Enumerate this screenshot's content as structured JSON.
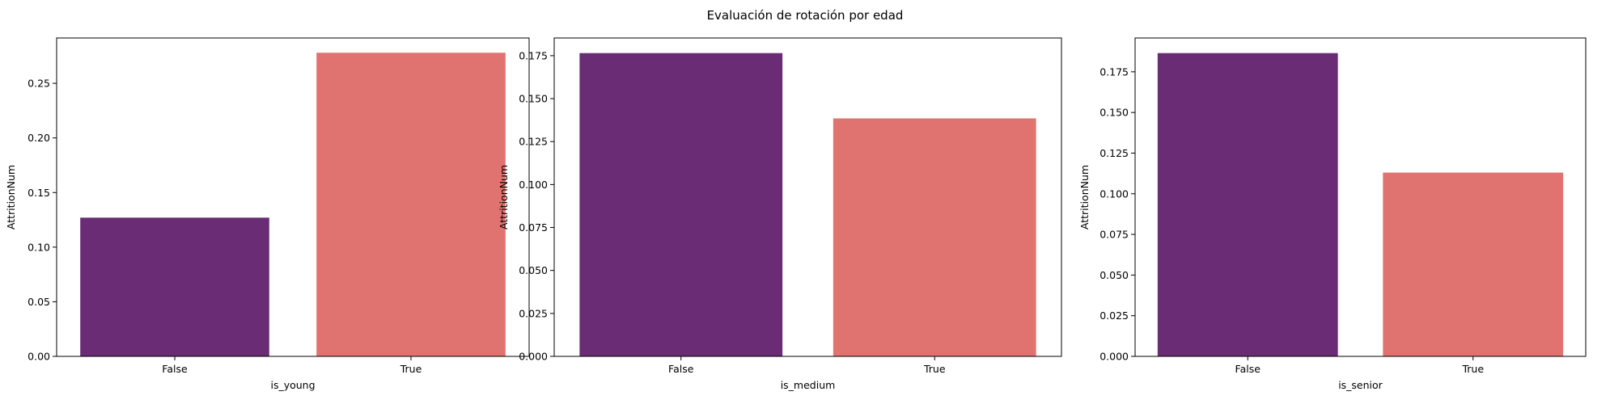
{
  "figure": {
    "suptitle": "Evaluación de rotación por edad"
  },
  "colors": {
    "bar_false": "#6a2c75",
    "bar_true": "#e07370"
  },
  "chart_data": [
    {
      "type": "bar",
      "categories": [
        "False",
        "True"
      ],
      "values": [
        0.127,
        0.278
      ],
      "xlabel": "is_young",
      "ylabel": "AttritionNum",
      "ylim": [
        0,
        0.2915
      ],
      "yticks": [
        0.0,
        0.05,
        0.1,
        0.15,
        0.2,
        0.25
      ],
      "ytick_labels": [
        "0.00",
        "0.05",
        "0.10",
        "0.15",
        "0.20",
        "0.25"
      ],
      "grid": false
    },
    {
      "type": "bar",
      "categories": [
        "False",
        "True"
      ],
      "values": [
        0.1765,
        0.1385
      ],
      "xlabel": "is_medium",
      "ylabel": "AttritionNum",
      "ylim": [
        0,
        0.1853
      ],
      "yticks": [
        0.0,
        0.025,
        0.05,
        0.075,
        0.1,
        0.125,
        0.15,
        0.175
      ],
      "ytick_labels": [
        "0.000",
        "0.025",
        "0.050",
        "0.075",
        "0.100",
        "0.125",
        "0.150",
        "0.175"
      ],
      "grid": false
    },
    {
      "type": "bar",
      "categories": [
        "False",
        "True"
      ],
      "values": [
        0.1865,
        0.113
      ],
      "xlabel": "is_senior",
      "ylabel": "AttritionNum",
      "ylim": [
        0,
        0.1958
      ],
      "yticks": [
        0.0,
        0.025,
        0.05,
        0.075,
        0.1,
        0.125,
        0.15,
        0.175
      ],
      "ytick_labels": [
        "0.000",
        "0.025",
        "0.050",
        "0.075",
        "0.100",
        "0.125",
        "0.150",
        "0.175"
      ],
      "grid": false
    }
  ]
}
